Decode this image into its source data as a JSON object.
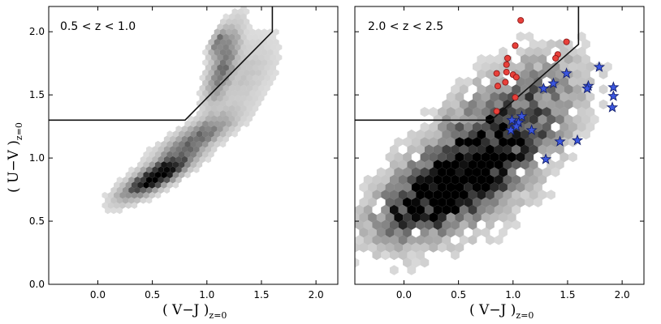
{
  "chart_data": [
    {
      "type": "scatter",
      "label": "0.5 < z < 1.0",
      "xlim": [
        -0.45,
        2.2
      ],
      "ylim": [
        0.0,
        2.2
      ],
      "xticks": [
        0.0,
        0.5,
        1.0,
        1.5,
        2.0
      ],
      "xtick_labels": [
        "0.0",
        "0.5",
        "1.0",
        "1.5",
        "2.0"
      ],
      "yticks": [
        0.0,
        0.5,
        1.0,
        1.5,
        2.0
      ],
      "ytick_labels": [
        "0.0",
        "0.5",
        "1.0",
        "1.5",
        "2.0"
      ],
      "ylabel": "( U−V )",
      "ylabel_sub": "z=0",
      "xlabel": "( V−J )",
      "xlabel_sub": "z=0",
      "boundary": [
        [
          -0.45,
          1.3
        ],
        [
          0.8,
          1.3
        ],
        [
          1.6,
          2.0
        ],
        [
          1.6,
          2.2
        ]
      ],
      "boundary_color": "#111111",
      "density_color": "#000000",
      "density_components": [
        {
          "mx": 0.55,
          "my": 0.86,
          "sx": 0.2,
          "sy": 0.11,
          "rho": 0.82,
          "w": 1.0
        },
        {
          "mx": 0.9,
          "my": 1.16,
          "sx": 0.22,
          "sy": 0.12,
          "rho": 0.8,
          "w": 0.45
        },
        {
          "mx": 1.15,
          "my": 1.75,
          "sx": 0.1,
          "sy": 0.2,
          "rho": 0.72,
          "w": 0.42
        },
        {
          "mx": 1.1,
          "my": 1.93,
          "sx": 0.05,
          "sy": 0.07,
          "rho": 0.6,
          "w": 0.35
        },
        {
          "mx": 1.35,
          "my": 1.65,
          "sx": 0.2,
          "sy": 0.22,
          "rho": 0.55,
          "w": 0.12
        }
      ]
    },
    {
      "type": "scatter",
      "label": "2.0 < z < 2.5",
      "xlim": [
        -0.45,
        2.2
      ],
      "ylim": [
        0.0,
        2.2
      ],
      "xticks": [
        0.0,
        0.5,
        1.0,
        1.5,
        2.0
      ],
      "xtick_labels": [
        "0.0",
        "0.5",
        "1.0",
        "1.5",
        "2.0"
      ],
      "xlabel": "( V−J )",
      "xlabel_sub": "z=0",
      "boundary": [
        [
          -0.45,
          1.3
        ],
        [
          0.8,
          1.3
        ],
        [
          1.6,
          1.9
        ],
        [
          1.6,
          2.2
        ]
      ],
      "boundary_color": "#111111",
      "density_color": "#000000",
      "density_components": [
        {
          "mx": 0.3,
          "my": 0.72,
          "sx": 0.33,
          "sy": 0.2,
          "rho": 0.6,
          "w": 0.8
        },
        {
          "mx": 0.7,
          "my": 1.0,
          "sx": 0.35,
          "sy": 0.28,
          "rho": 0.5,
          "w": 0.55
        },
        {
          "mx": 1.1,
          "my": 1.4,
          "sx": 0.4,
          "sy": 0.33,
          "rho": 0.45,
          "w": 0.35
        },
        {
          "mx": 0.5,
          "my": 0.8,
          "sx": 0.6,
          "sy": 0.45,
          "rho": 0.5,
          "w": 0.2
        }
      ],
      "series": [
        {
          "marker": "circle",
          "color": "#e8403a",
          "edge": "#8b1a1a",
          "points": [
            {
              "x": 1.07,
              "y": 2.09
            },
            {
              "x": 1.02,
              "y": 1.89
            },
            {
              "x": 0.95,
              "y": 1.79
            },
            {
              "x": 0.94,
              "y": 1.74
            },
            {
              "x": 0.94,
              "y": 1.68
            },
            {
              "x": 0.85,
              "y": 1.67
            },
            {
              "x": 1.0,
              "y": 1.66
            },
            {
              "x": 1.03,
              "y": 1.64
            },
            {
              "x": 0.93,
              "y": 1.6
            },
            {
              "x": 0.86,
              "y": 1.57
            },
            {
              "x": 0.85,
              "y": 1.37
            },
            {
              "x": 1.02,
              "y": 1.48
            },
            {
              "x": 1.49,
              "y": 1.92
            },
            {
              "x": 1.41,
              "y": 1.82
            },
            {
              "x": 1.39,
              "y": 1.79
            }
          ]
        },
        {
          "marker": "star",
          "color": "#3a56e0",
          "edge": "#14206e",
          "points": [
            {
              "x": 1.79,
              "y": 1.72
            },
            {
              "x": 1.49,
              "y": 1.67
            },
            {
              "x": 1.37,
              "y": 1.59
            },
            {
              "x": 1.28,
              "y": 1.55
            },
            {
              "x": 1.69,
              "y": 1.57
            },
            {
              "x": 1.68,
              "y": 1.55
            },
            {
              "x": 1.92,
              "y": 1.56
            },
            {
              "x": 1.92,
              "y": 1.49
            },
            {
              "x": 1.91,
              "y": 1.4
            },
            {
              "x": 1.08,
              "y": 1.33
            },
            {
              "x": 0.99,
              "y": 1.3
            },
            {
              "x": 1.05,
              "y": 1.28
            },
            {
              "x": 0.98,
              "y": 1.22
            },
            {
              "x": 1.03,
              "y": 1.25
            },
            {
              "x": 1.17,
              "y": 1.22
            },
            {
              "x": 1.43,
              "y": 1.13
            },
            {
              "x": 1.59,
              "y": 1.14
            },
            {
              "x": 1.3,
              "y": 0.99
            }
          ]
        }
      ]
    }
  ]
}
